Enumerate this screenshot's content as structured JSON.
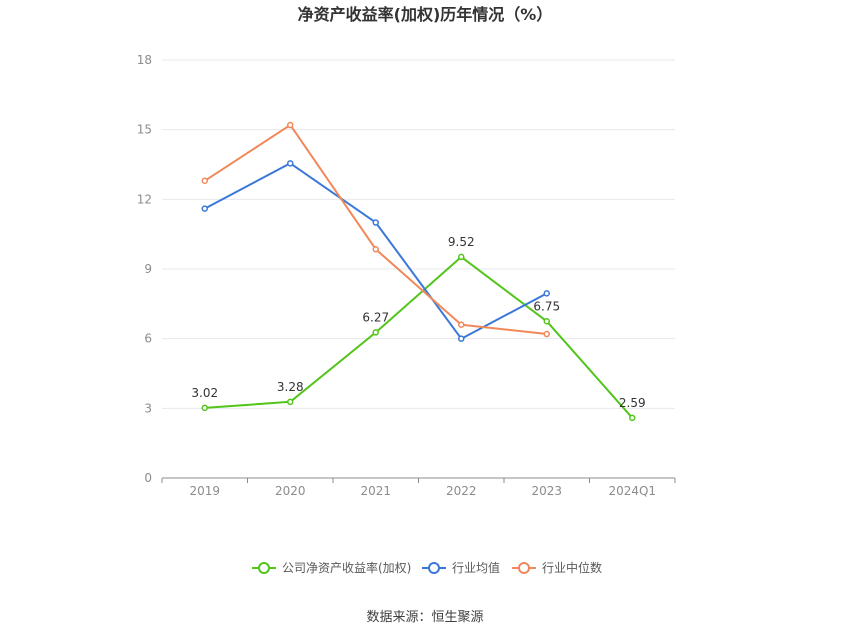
{
  "chart_data": {
    "type": "line",
    "title": "净资产收益率(加权)历年情况（%）",
    "categories": [
      "2019",
      "2020",
      "2021",
      "2022",
      "2023",
      "2024Q1"
    ],
    "ylim": [
      0,
      18
    ],
    "yticks": [
      "0",
      "3",
      "6",
      "9",
      "12",
      "15",
      "18"
    ],
    "grid": true,
    "legend_placement": "bottom",
    "series": [
      {
        "name": "公司净资产收益率(加权)",
        "color": "#52c41a",
        "values": [
          3.02,
          3.28,
          6.27,
          9.52,
          6.75,
          2.59
        ],
        "labels": [
          "3.02",
          "3.28",
          "6.27",
          "9.52",
          "6.75",
          "2.59"
        ]
      },
      {
        "name": "行业均值",
        "color": "#3a78d8",
        "values": [
          11.6,
          13.55,
          11.0,
          6.0,
          7.95,
          null
        ]
      },
      {
        "name": "行业中位数",
        "color": "#f0885a",
        "values": [
          12.8,
          15.2,
          9.85,
          6.6,
          6.2,
          null
        ]
      }
    ],
    "source": "数据来源：恒生聚源"
  }
}
